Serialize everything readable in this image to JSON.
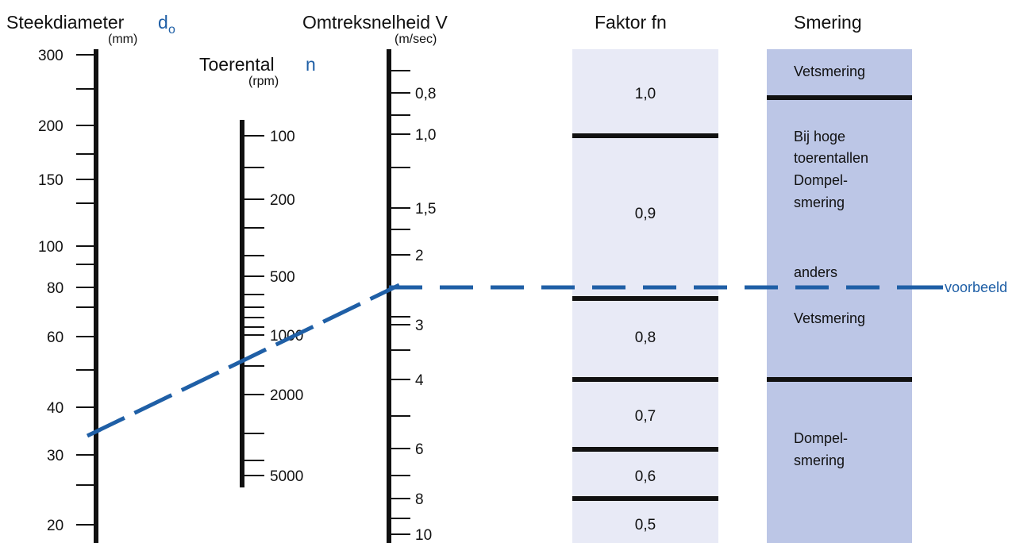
{
  "colors": {
    "axis": "#111111",
    "accent": "#1F5FA6",
    "fn_column": "#E8EAF6",
    "smering_column": "#BCC6E6"
  },
  "headers": {
    "steek_title": "Steekdiameter",
    "steek_symbol": "d",
    "steek_subscript": "o",
    "steek_unit": "(mm)",
    "toerental_title": "Toerental",
    "toerental_symbol": "n",
    "toerental_unit": "(rpm)",
    "omtrek_title": "Omtreksnelheid V",
    "omtrek_unit": "(m/sec)",
    "fn_title": "Faktor fn",
    "smering_title": "Smering"
  },
  "axes": {
    "steek": {
      "labels": [
        "300",
        "200",
        "150",
        "100",
        "80",
        "60",
        "40",
        "30",
        "20"
      ]
    },
    "toerental": {
      "labels": [
        "100",
        "200",
        "500",
        "1000",
        "2000",
        "5000"
      ]
    },
    "omtrek": {
      "labels": [
        "0,8",
        "1,0",
        "1,5",
        "2",
        "3",
        "4",
        "6",
        "8",
        "10"
      ]
    }
  },
  "fn_column": {
    "values": [
      "1,0",
      "0,9",
      "0,8",
      "0,7",
      "0,6",
      "0,5"
    ]
  },
  "smering_column": {
    "vet_top": "Vetsmering",
    "bij_hoge": [
      "Bij hoge",
      "toerentallen",
      "Dompel-",
      "smering"
    ],
    "anders": "anders",
    "vet_mid": "Vetsmering",
    "dompel": [
      "Dompel-",
      "smering"
    ]
  },
  "example": {
    "label": "voorbeeld",
    "steekdiameter_mm": 33,
    "toerental_rpm": 1200,
    "omtreksnelheid_ms": 2.3
  }
}
